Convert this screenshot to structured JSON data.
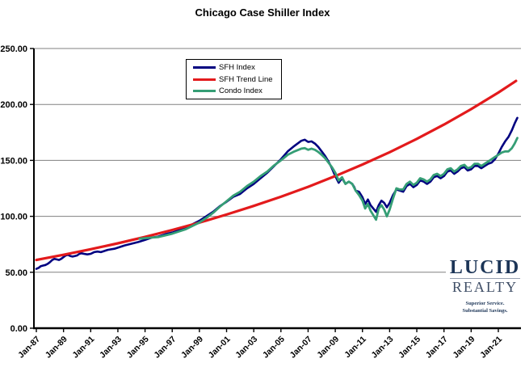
{
  "title": "Chicago Case Shiller Index",
  "colors": {
    "sfh_index": "#000080",
    "sfh_trend": "#E31A1C",
    "condo_index": "#359E75",
    "grid": "#808080",
    "axis": "#000000",
    "logo_navy": "#1C3557",
    "logo_gray_navy": "#3F4E66",
    "background": "#FFFFFF"
  },
  "legend": {
    "items": [
      {
        "label": "SFH Index",
        "color": "#000080"
      },
      {
        "label": "SFH Trend Line",
        "color": "#E31A1C"
      },
      {
        "label": "Condo Index",
        "color": "#359E75"
      }
    ]
  },
  "logo": {
    "name_top": "LUCID",
    "name_bottom": "REALTY",
    "tagline_line1": "Superior Service.",
    "tagline_line2": "Substantial Savings."
  },
  "chart_data": {
    "type": "line",
    "title": "Chicago Case Shiller Index",
    "xlabel": "",
    "ylabel": "",
    "ylim": [
      0,
      250
    ],
    "grid": true,
    "legend_position": "top-left-inside",
    "y_ticks": [
      {
        "label": "0.00",
        "value": 0
      },
      {
        "label": "50.00",
        "value": 50
      },
      {
        "label": "100.00",
        "value": 100
      },
      {
        "label": "150.00",
        "value": 150
      },
      {
        "label": "200.00",
        "value": 200
      },
      {
        "label": "250.00",
        "value": 250
      }
    ],
    "x_ticks": [
      {
        "label": "Jan-87",
        "year": 1987
      },
      {
        "label": "Jan-89",
        "year": 1989
      },
      {
        "label": "Jan-91",
        "year": 1991
      },
      {
        "label": "Jan-93",
        "year": 1993
      },
      {
        "label": "Jan-95",
        "year": 1995
      },
      {
        "label": "Jan-97",
        "year": 1997
      },
      {
        "label": "Jan-99",
        "year": 1999
      },
      {
        "label": "Jan-01",
        "year": 2001
      },
      {
        "label": "Jan-03",
        "year": 2003
      },
      {
        "label": "Jan-05",
        "year": 2005
      },
      {
        "label": "Jan-07",
        "year": 2007
      },
      {
        "label": "Jan-09",
        "year": 2009
      },
      {
        "label": "Jan-11",
        "year": 2011
      },
      {
        "label": "Jan-13",
        "year": 2013
      },
      {
        "label": "Jan-15",
        "year": 2015
      },
      {
        "label": "Jan-17",
        "year": 2017
      },
      {
        "label": "Jan-19",
        "year": 2019
      },
      {
        "label": "Jan-21",
        "year": 2021
      }
    ],
    "series": [
      {
        "name": "SFH Index",
        "color": "#000080",
        "points": [
          [
            1987.0,
            53
          ],
          [
            1987.17,
            54
          ],
          [
            1987.33,
            55.5
          ],
          [
            1987.5,
            56
          ],
          [
            1987.67,
            56.5
          ],
          [
            1987.83,
            57.5
          ],
          [
            1988.0,
            59
          ],
          [
            1988.17,
            61
          ],
          [
            1988.33,
            62
          ],
          [
            1988.5,
            61.5
          ],
          [
            1988.67,
            61
          ],
          [
            1988.83,
            62
          ],
          [
            1989.0,
            63.5
          ],
          [
            1989.17,
            65
          ],
          [
            1989.33,
            65.5
          ],
          [
            1989.5,
            64.5
          ],
          [
            1989.67,
            64
          ],
          [
            1989.83,
            64.5
          ],
          [
            1990.0,
            65
          ],
          [
            1990.17,
            66.5
          ],
          [
            1990.33,
            67
          ],
          [
            1990.5,
            66.5
          ],
          [
            1990.75,
            66
          ],
          [
            1991.0,
            66.5
          ],
          [
            1991.25,
            68
          ],
          [
            1991.5,
            68.5
          ],
          [
            1991.75,
            68
          ],
          [
            1992.0,
            69
          ],
          [
            1992.25,
            70
          ],
          [
            1992.5,
            70.5
          ],
          [
            1992.75,
            71
          ],
          [
            1993.0,
            72
          ],
          [
            1993.5,
            74
          ],
          [
            1994.0,
            75.5
          ],
          [
            1994.5,
            77
          ],
          [
            1995.0,
            79
          ],
          [
            1995.5,
            81
          ],
          [
            1996.0,
            82
          ],
          [
            1996.5,
            84
          ],
          [
            1997.0,
            85.5
          ],
          [
            1997.5,
            87.5
          ],
          [
            1998.0,
            90
          ],
          [
            1998.5,
            93
          ],
          [
            1999.0,
            96
          ],
          [
            1999.5,
            100
          ],
          [
            2000.0,
            104
          ],
          [
            2000.5,
            109
          ],
          [
            2001.0,
            113
          ],
          [
            2001.5,
            117.5
          ],
          [
            2002.0,
            120
          ],
          [
            2002.5,
            125
          ],
          [
            2003.0,
            129
          ],
          [
            2003.5,
            134
          ],
          [
            2004.0,
            139
          ],
          [
            2004.5,
            145
          ],
          [
            2005.0,
            151
          ],
          [
            2005.5,
            158
          ],
          [
            2006.0,
            163
          ],
          [
            2006.5,
            167.5
          ],
          [
            2006.75,
            168.5
          ],
          [
            2007.0,
            166.5
          ],
          [
            2007.25,
            167
          ],
          [
            2007.5,
            165
          ],
          [
            2007.75,
            162
          ],
          [
            2008.0,
            158
          ],
          [
            2008.25,
            154
          ],
          [
            2008.5,
            149
          ],
          [
            2008.75,
            143
          ],
          [
            2009.0,
            136
          ],
          [
            2009.25,
            130
          ],
          [
            2009.5,
            134
          ],
          [
            2009.75,
            129
          ],
          [
            2010.0,
            131
          ],
          [
            2010.25,
            129
          ],
          [
            2010.4,
            126
          ],
          [
            2010.5,
            123
          ],
          [
            2010.75,
            122
          ],
          [
            2011.0,
            117
          ],
          [
            2011.2,
            111
          ],
          [
            2011.4,
            115
          ],
          [
            2011.6,
            110
          ],
          [
            2011.8,
            107
          ],
          [
            2012.0,
            104
          ],
          [
            2012.2,
            110
          ],
          [
            2012.4,
            114
          ],
          [
            2012.6,
            112
          ],
          [
            2012.8,
            108
          ],
          [
            2013.0,
            112
          ],
          [
            2013.25,
            119
          ],
          [
            2013.5,
            124
          ],
          [
            2013.75,
            123
          ],
          [
            2014.0,
            122
          ],
          [
            2014.25,
            127
          ],
          [
            2014.5,
            129
          ],
          [
            2014.75,
            126
          ],
          [
            2015.0,
            128
          ],
          [
            2015.25,
            132
          ],
          [
            2015.5,
            131
          ],
          [
            2015.75,
            129
          ],
          [
            2016.0,
            131
          ],
          [
            2016.25,
            135
          ],
          [
            2016.5,
            136
          ],
          [
            2016.75,
            134
          ],
          [
            2017.0,
            136
          ],
          [
            2017.25,
            140
          ],
          [
            2017.5,
            141
          ],
          [
            2017.75,
            138
          ],
          [
            2018.0,
            140
          ],
          [
            2018.25,
            143
          ],
          [
            2018.5,
            144
          ],
          [
            2018.75,
            141
          ],
          [
            2019.0,
            142
          ],
          [
            2019.25,
            145
          ],
          [
            2019.5,
            145
          ],
          [
            2019.75,
            143
          ],
          [
            2020.0,
            145
          ],
          [
            2020.25,
            147
          ],
          [
            2020.5,
            148
          ],
          [
            2020.75,
            151
          ],
          [
            2021.0,
            156
          ],
          [
            2021.25,
            162
          ],
          [
            2021.5,
            167
          ],
          [
            2021.75,
            171
          ],
          [
            2022.0,
            177
          ],
          [
            2022.2,
            183
          ],
          [
            2022.4,
            188
          ]
        ]
      },
      {
        "name": "SFH Trend Line",
        "color": "#E31A1C",
        "points": [
          [
            1987,
            61
          ],
          [
            1989,
            65.6
          ],
          [
            1991,
            70.6
          ],
          [
            1993,
            75.9
          ],
          [
            1995,
            81.6
          ],
          [
            1997,
            87.8
          ],
          [
            1999,
            94.4
          ],
          [
            2001,
            101.6
          ],
          [
            2003,
            109.3
          ],
          [
            2005,
            117.5
          ],
          [
            2007,
            126.4
          ],
          [
            2009,
            136.0
          ],
          [
            2011,
            146.3
          ],
          [
            2013,
            157.3
          ],
          [
            2015,
            169.2
          ],
          [
            2017,
            182.0
          ],
          [
            2019,
            195.8
          ],
          [
            2021,
            210.6
          ],
          [
            2022.3,
            221
          ]
        ]
      },
      {
        "name": "Condo Index",
        "color": "#359E75",
        "points": [
          [
            1994.6,
            80
          ],
          [
            1995.0,
            80.5
          ],
          [
            1995.5,
            81
          ],
          [
            1996.0,
            81.5
          ],
          [
            1996.5,
            83
          ],
          [
            1997.0,
            84.5
          ],
          [
            1997.5,
            86.5
          ],
          [
            1998.0,
            88.5
          ],
          [
            1998.5,
            91.5
          ],
          [
            1999.0,
            94.5
          ],
          [
            1999.5,
            98.5
          ],
          [
            2000.0,
            103
          ],
          [
            2000.5,
            108.5
          ],
          [
            2001.0,
            113.5
          ],
          [
            2001.5,
            118.5
          ],
          [
            2002.0,
            122
          ],
          [
            2002.5,
            127
          ],
          [
            2003.0,
            131
          ],
          [
            2003.5,
            136
          ],
          [
            2004.0,
            140
          ],
          [
            2004.5,
            145.5
          ],
          [
            2005.0,
            150
          ],
          [
            2005.5,
            155
          ],
          [
            2006.0,
            158
          ],
          [
            2006.5,
            160.5
          ],
          [
            2006.75,
            161
          ],
          [
            2007.0,
            159.5
          ],
          [
            2007.25,
            160.5
          ],
          [
            2007.5,
            159.5
          ],
          [
            2007.75,
            157.5
          ],
          [
            2008.0,
            155
          ],
          [
            2008.25,
            152
          ],
          [
            2008.5,
            148
          ],
          [
            2008.75,
            144
          ],
          [
            2009.0,
            139
          ],
          [
            2009.25,
            132
          ],
          [
            2009.5,
            135
          ],
          [
            2009.75,
            129
          ],
          [
            2010.0,
            131
          ],
          [
            2010.25,
            129
          ],
          [
            2010.5,
            123
          ],
          [
            2010.75,
            119
          ],
          [
            2011.0,
            114
          ],
          [
            2011.2,
            107
          ],
          [
            2011.4,
            111
          ],
          [
            2011.6,
            105
          ],
          [
            2011.8,
            101
          ],
          [
            2012.0,
            97
          ],
          [
            2012.2,
            107
          ],
          [
            2012.4,
            110
          ],
          [
            2012.6,
            106
          ],
          [
            2012.8,
            100
          ],
          [
            2013.0,
            106
          ],
          [
            2013.25,
            116
          ],
          [
            2013.5,
            125
          ],
          [
            2013.75,
            124
          ],
          [
            2014.0,
            124
          ],
          [
            2014.25,
            129
          ],
          [
            2014.5,
            131
          ],
          [
            2014.75,
            128
          ],
          [
            2015.0,
            130
          ],
          [
            2015.25,
            134
          ],
          [
            2015.5,
            133
          ],
          [
            2015.75,
            131
          ],
          [
            2016.0,
            133
          ],
          [
            2016.25,
            137
          ],
          [
            2016.5,
            138
          ],
          [
            2016.75,
            136
          ],
          [
            2017.0,
            138
          ],
          [
            2017.25,
            142
          ],
          [
            2017.5,
            143
          ],
          [
            2017.75,
            140
          ],
          [
            2018.0,
            142
          ],
          [
            2018.25,
            145
          ],
          [
            2018.5,
            146
          ],
          [
            2018.75,
            143
          ],
          [
            2019.0,
            144
          ],
          [
            2019.25,
            147
          ],
          [
            2019.5,
            147
          ],
          [
            2019.75,
            145
          ],
          [
            2020.0,
            147
          ],
          [
            2020.25,
            149
          ],
          [
            2020.5,
            151
          ],
          [
            2020.75,
            153
          ],
          [
            2021.0,
            155
          ],
          [
            2021.25,
            157
          ],
          [
            2021.5,
            158
          ],
          [
            2021.75,
            158
          ],
          [
            2022.0,
            161
          ],
          [
            2022.2,
            165
          ],
          [
            2022.4,
            170
          ]
        ]
      }
    ]
  }
}
